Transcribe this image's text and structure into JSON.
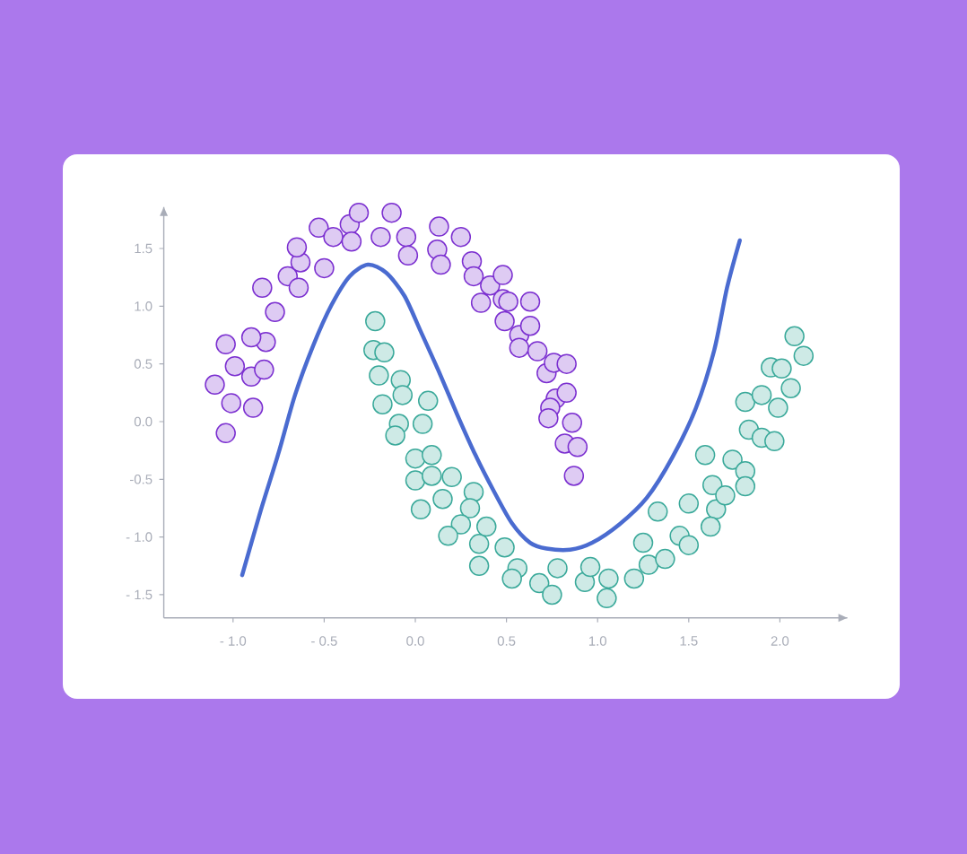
{
  "chart_data": {
    "type": "scatter",
    "xlim": [
      -1.38,
      2.37
    ],
    "ylim": [
      -1.7,
      1.86
    ],
    "xticks": [
      {
        "value": -1.0,
        "label": "- 1.0"
      },
      {
        "value": -0.5,
        "label": "- 0.5"
      },
      {
        "value": 0.0,
        "label": "0.0"
      },
      {
        "value": 0.5,
        "label": "0.5"
      },
      {
        "value": 1.0,
        "label": "1.0"
      },
      {
        "value": 1.5,
        "label": "1.5"
      },
      {
        "value": 2.0,
        "label": "2.0"
      }
    ],
    "yticks": [
      {
        "value": -1.5,
        "label": "- 1.5"
      },
      {
        "value": -1.0,
        "label": "- 1.0"
      },
      {
        "value": -0.5,
        "label": "-0.5"
      },
      {
        "value": 0.0,
        "label": "0.0"
      },
      {
        "value": 0.5,
        "label": "0.5"
      },
      {
        "value": 1.0,
        "label": "1.0"
      },
      {
        "value": 1.5,
        "label": "1.5"
      }
    ],
    "series": [
      {
        "type": "scatter",
        "marker": "circle",
        "color": "#7b2fd0",
        "x": [
          -1.1,
          -1.04,
          -0.99,
          -1.01,
          -1.04,
          -0.9,
          -0.89,
          -0.82,
          -0.83,
          -0.9,
          -0.77,
          -0.84,
          -0.7,
          -0.64,
          -0.63,
          -0.65,
          -0.5,
          -0.53,
          -0.45,
          -0.36,
          -0.35,
          -0.31,
          -0.19,
          -0.13,
          -0.05,
          -0.04,
          0.13,
          0.12,
          0.14,
          0.25,
          0.31,
          0.32,
          0.36,
          0.41,
          0.48,
          0.48,
          0.49,
          0.51,
          0.57,
          0.57,
          0.63,
          0.67,
          0.63,
          0.72,
          0.76,
          0.77,
          0.83,
          0.74,
          0.73,
          0.83,
          0.86,
          0.82,
          0.89,
          0.87
        ],
        "values": [
          0.32,
          0.67,
          0.48,
          0.16,
          -0.1,
          0.39,
          0.12,
          0.69,
          0.45,
          0.73,
          0.95,
          1.16,
          1.26,
          1.16,
          1.38,
          1.51,
          1.33,
          1.68,
          1.6,
          1.71,
          1.56,
          1.81,
          1.6,
          1.81,
          1.6,
          1.44,
          1.69,
          1.49,
          1.36,
          1.6,
          1.39,
          1.26,
          1.03,
          1.18,
          1.27,
          1.06,
          0.87,
          1.04,
          0.75,
          0.64,
          0.83,
          0.61,
          1.04,
          0.42,
          0.51,
          0.2,
          0.5,
          0.12,
          0.03,
          0.25,
          -0.01,
          -0.19,
          -0.22,
          -0.47
        ]
      },
      {
        "marker": "circle",
        "color": "#3aa99a",
        "x": [
          -0.22,
          -0.23,
          -0.17,
          -0.2,
          -0.08,
          -0.07,
          -0.18,
          -0.09,
          -0.11,
          0.07,
          0.04,
          0.0,
          0.0,
          0.09,
          0.09,
          0.03,
          0.15,
          0.2,
          0.32,
          0.3,
          0.25,
          0.18,
          0.35,
          0.39,
          0.35,
          0.49,
          0.56,
          0.53,
          0.68,
          0.75,
          0.78,
          0.93,
          0.96,
          1.06,
          1.05,
          1.2,
          1.25,
          1.28,
          1.33,
          1.37,
          1.45,
          1.5,
          1.5,
          1.59,
          1.63,
          1.65,
          1.62,
          1.74,
          1.7,
          1.81,
          1.81,
          1.83,
          1.81,
          1.9,
          1.9,
          1.95,
          2.01,
          1.99,
          1.97,
          2.06,
          2.08,
          2.13
        ],
        "values": [
          0.87,
          0.62,
          0.6,
          0.4,
          0.36,
          0.23,
          0.15,
          -0.02,
          -0.12,
          0.18,
          -0.02,
          -0.32,
          -0.51,
          -0.29,
          -0.47,
          -0.76,
          -0.67,
          -0.48,
          -0.61,
          -0.75,
          -0.89,
          -0.99,
          -1.06,
          -0.91,
          -1.25,
          -1.09,
          -1.27,
          -1.36,
          -1.4,
          -1.5,
          -1.27,
          -1.39,
          -1.26,
          -1.36,
          -1.53,
          -1.36,
          -1.05,
          -1.24,
          -0.78,
          -1.19,
          -0.99,
          -0.71,
          -1.07,
          -0.29,
          -0.55,
          -0.76,
          -0.91,
          -0.33,
          -0.64,
          -0.43,
          -0.56,
          -0.07,
          0.17,
          -0.14,
          0.23,
          0.47,
          0.46,
          0.12,
          -0.17,
          0.29,
          0.74,
          0.57
        ]
      },
      {
        "type": "line",
        "marker": "none",
        "color": "#4a6bd0",
        "x": [
          -0.95,
          -0.85,
          -0.75,
          -0.66,
          -0.56,
          -0.46,
          -0.36,
          -0.26,
          -0.16,
          -0.06,
          0.03,
          0.13,
          0.23,
          0.33,
          0.43,
          0.53,
          0.63,
          0.72,
          0.85,
          0.97,
          1.12,
          1.27,
          1.41,
          1.54,
          1.64,
          1.71,
          1.78
        ],
        "values": [
          -1.33,
          -0.78,
          -0.27,
          0.23,
          0.66,
          1.01,
          1.26,
          1.36,
          1.29,
          1.09,
          0.78,
          0.43,
          0.06,
          -0.29,
          -0.6,
          -0.88,
          -1.05,
          -1.1,
          -1.11,
          -1.05,
          -0.89,
          -0.66,
          -0.31,
          0.12,
          0.62,
          1.16,
          1.57
        ]
      }
    ]
  }
}
